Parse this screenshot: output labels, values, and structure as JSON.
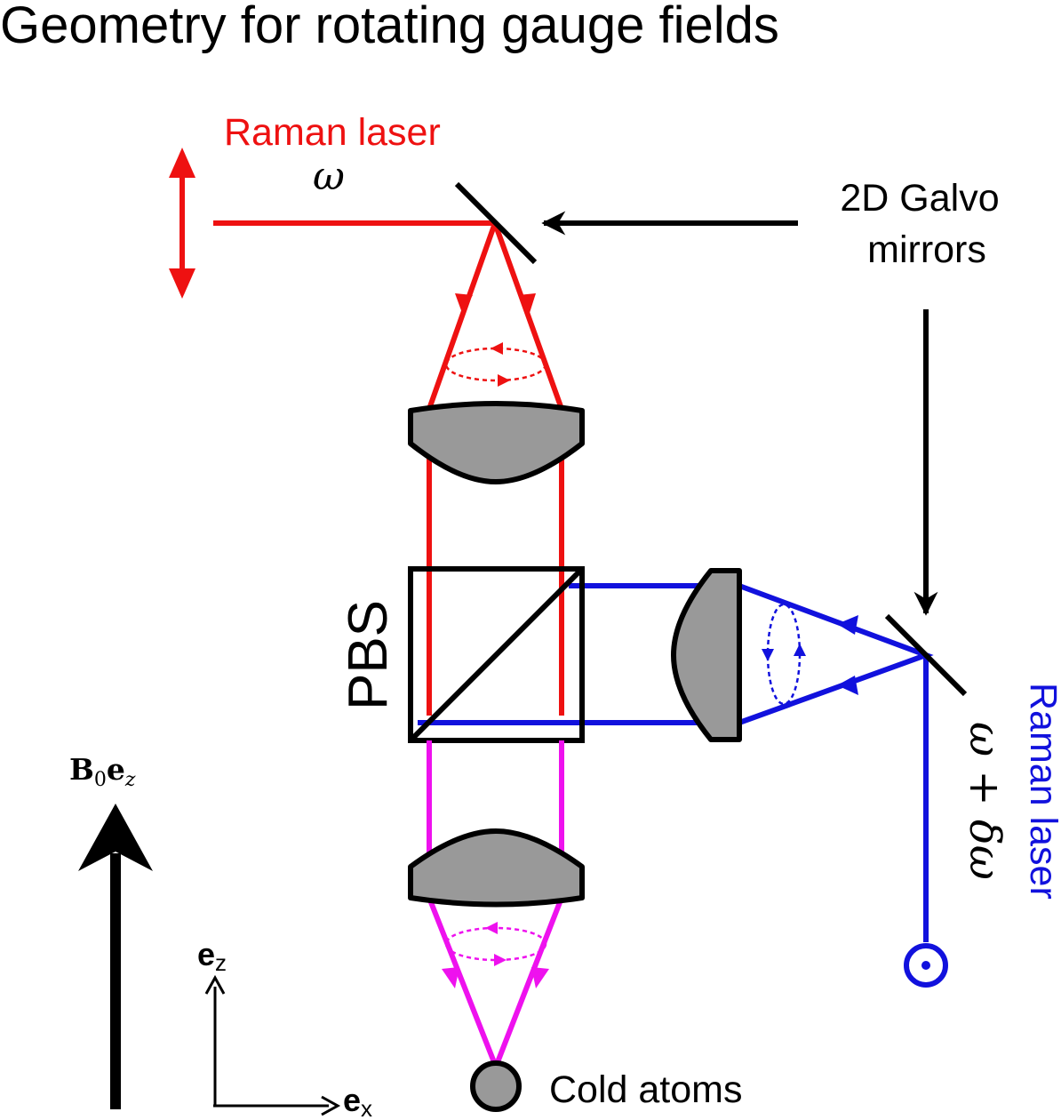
{
  "title": "Geometry for rotating gauge fields",
  "labels": {
    "raman_laser_red": "Raman laser",
    "omega": "ω",
    "galvo_line1": "2D Galvo",
    "galvo_line2": "mirrors",
    "pbs": "PBS",
    "raman_laser_blue": "Raman laser",
    "omega_delta": "ω + δω",
    "b_field": "B",
    "b_field_sub": "0",
    "b_field_e": "e",
    "b_field_e_sub": "z",
    "ez_axis": "e",
    "ez_sub": "z",
    "ex_axis": "e",
    "ex_sub": "x",
    "cold_atoms": "Cold atoms"
  },
  "colors": {
    "red_beam": "#ee1111",
    "blue_beam": "#1111dd",
    "magenta_beam": "#ee11ee",
    "lens_fill": "#999999",
    "outline": "#000000"
  },
  "icons": {
    "polarization_out_of_plane": "circle-dot-icon",
    "cold_atoms_cloud": "filled-circle-icon"
  }
}
